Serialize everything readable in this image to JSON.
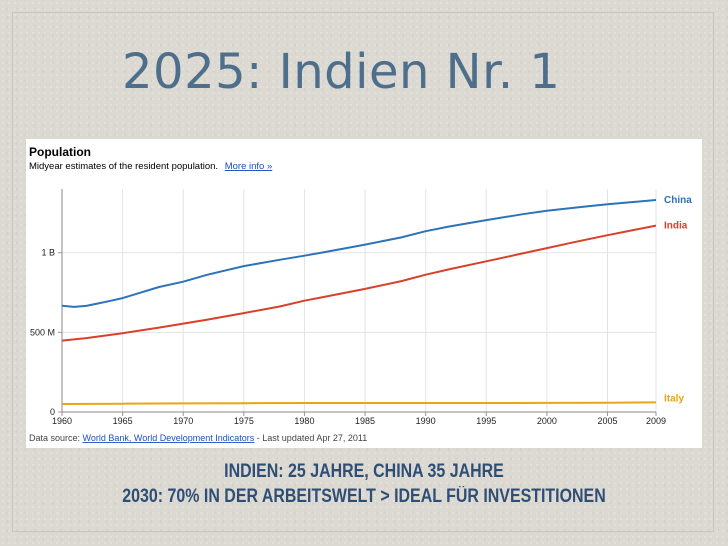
{
  "slide": {
    "title": "2025: Indien Nr. 1",
    "caption_line1": "INDIEN: 25 JAHRE, CHINA 35 JAHRE",
    "caption_line2": "2030: 70% IN DER ARBEITSWELT > IDEAL FÜR INVESTITIONEN"
  },
  "chart_data": {
    "type": "line",
    "title": "Population",
    "subtitle": "Midyear estimates of the resident population.",
    "more_info_link": "More info »",
    "source_prefix": "Data source: ",
    "source_link": "World Bank, World Development Indicators",
    "source_suffix": " - Last updated Apr 27, 2011",
    "xlabel": "",
    "ylabel": "",
    "xlim": [
      1960,
      2009
    ],
    "ylim": [
      0,
      1400000000
    ],
    "x_ticks": [
      1960,
      1965,
      1970,
      1975,
      1980,
      1985,
      1990,
      1995,
      2000,
      2005,
      2009
    ],
    "y_ticks": [
      {
        "value": 0,
        "label": "0"
      },
      {
        "value": 500000000,
        "label": "500 M"
      },
      {
        "value": 1000000000,
        "label": "1 B"
      }
    ],
    "grid": true,
    "legend": "right-end labels",
    "series": [
      {
        "name": "China",
        "color": "#2d73b8",
        "points": [
          [
            1960,
            667000000
          ],
          [
            1961,
            660000000
          ],
          [
            1962,
            666000000
          ],
          [
            1963,
            682000000
          ],
          [
            1964,
            698000000
          ],
          [
            1965,
            715000000
          ],
          [
            1968,
            785000000
          ],
          [
            1970,
            818000000
          ],
          [
            1972,
            862000000
          ],
          [
            1975,
            916000000
          ],
          [
            1978,
            956000000
          ],
          [
            1980,
            981000000
          ],
          [
            1982,
            1008000000
          ],
          [
            1985,
            1051000000
          ],
          [
            1988,
            1096000000
          ],
          [
            1990,
            1135000000
          ],
          [
            1992,
            1165000000
          ],
          [
            1995,
            1205000000
          ],
          [
            1998,
            1242000000
          ],
          [
            2000,
            1263000000
          ],
          [
            2003,
            1288000000
          ],
          [
            2005,
            1304000000
          ],
          [
            2007,
            1318000000
          ],
          [
            2009,
            1331000000
          ]
        ]
      },
      {
        "name": "India",
        "color": "#d9402b",
        "points": [
          [
            1960,
            448000000
          ],
          [
            1962,
            464000000
          ],
          [
            1965,
            495000000
          ],
          [
            1968,
            530000000
          ],
          [
            1970,
            555000000
          ],
          [
            1972,
            580000000
          ],
          [
            1975,
            621000000
          ],
          [
            1978,
            663000000
          ],
          [
            1980,
            699000000
          ],
          [
            1982,
            728000000
          ],
          [
            1985,
            773000000
          ],
          [
            1988,
            822000000
          ],
          [
            1990,
            862000000
          ],
          [
            1992,
            897000000
          ],
          [
            1995,
            946000000
          ],
          [
            1998,
            996000000
          ],
          [
            2000,
            1029000000
          ],
          [
            2002,
            1062000000
          ],
          [
            2005,
            1110000000
          ],
          [
            2007,
            1140000000
          ],
          [
            2009,
            1170000000
          ]
        ]
      },
      {
        "name": "Italy",
        "color": "#e8a51a",
        "points": [
          [
            1960,
            50000000
          ],
          [
            1965,
            52000000
          ],
          [
            1970,
            53800000
          ],
          [
            1975,
            55400000
          ],
          [
            1980,
            56400000
          ],
          [
            1985,
            56600000
          ],
          [
            1990,
            56700000
          ],
          [
            1995,
            56800000
          ],
          [
            2000,
            56900000
          ],
          [
            2005,
            58600000
          ],
          [
            2009,
            60200000
          ]
        ]
      }
    ]
  }
}
